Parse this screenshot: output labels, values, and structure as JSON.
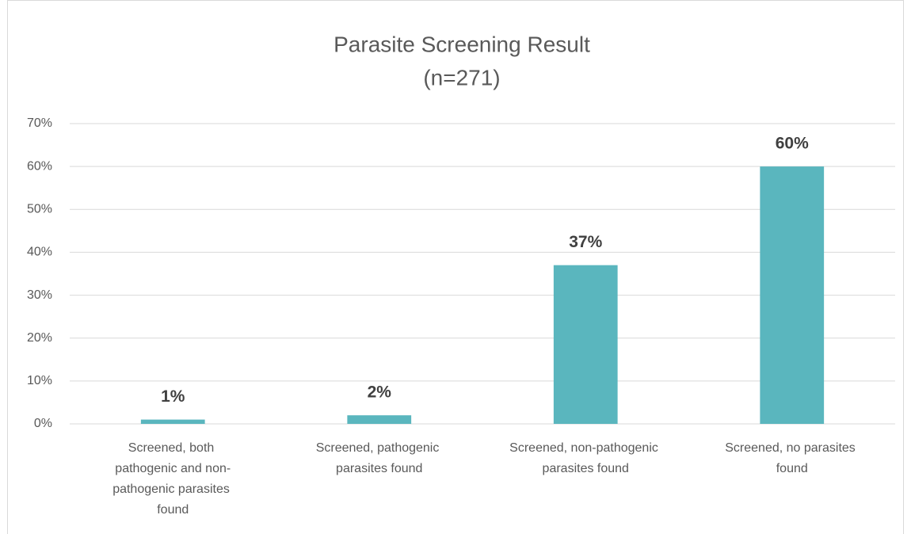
{
  "chart_data": {
    "type": "bar",
    "title": "Parasite Screening Result",
    "subtitle": "(n=271)",
    "categories": [
      "Screened, both pathogenic and non-pathogenic parasites found",
      "Screened, pathogenic parasites found",
      "Screened, non-pathogenic parasites found",
      "Screened, no parasites found"
    ],
    "values": [
      1,
      2,
      37,
      60
    ],
    "value_labels": [
      "1%",
      "2%",
      "37%",
      "60%"
    ],
    "color": "#5ab6be",
    "ylim": [
      0,
      70
    ],
    "yticks": [
      {
        "value": 0,
        "label": "0%"
      },
      {
        "value": 10,
        "label": "10%"
      },
      {
        "value": 20,
        "label": "20%"
      },
      {
        "value": 30,
        "label": "30%"
      },
      {
        "value": 40,
        "label": "40%"
      },
      {
        "value": 50,
        "label": "50%"
      },
      {
        "value": 60,
        "label": "60%"
      },
      {
        "value": 70,
        "label": "70%"
      }
    ],
    "grid": true
  }
}
